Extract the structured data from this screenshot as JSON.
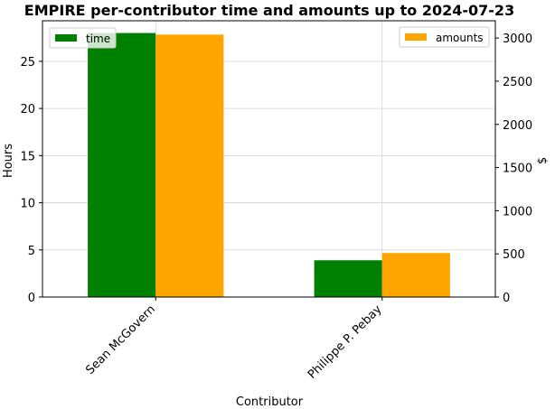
{
  "chart_data": {
    "type": "bar",
    "title": "EMPIRE per-contributor time and amounts up to 2024-07-23",
    "xlabel": "Contributor",
    "categories": [
      "Sean McGovern",
      "Philippe P. Pebay"
    ],
    "left_axis": {
      "label": "Hours",
      "ylim": [
        0,
        29.3
      ],
      "ticks": [
        0,
        5,
        10,
        15,
        20,
        25
      ]
    },
    "right_axis": {
      "label": "$",
      "ylim": [
        0,
        3200
      ],
      "ticks": [
        0,
        500,
        1000,
        1500,
        2000,
        2500,
        3000
      ]
    },
    "series": [
      {
        "name": "time",
        "axis": "left",
        "color": "#008000",
        "values": [
          28.0,
          3.9
        ]
      },
      {
        "name": "amounts",
        "axis": "right",
        "color": "#ffa500",
        "values": [
          3040,
          510
        ]
      }
    ],
    "legends": [
      {
        "series": "time",
        "placement": "upper-left"
      },
      {
        "series": "amounts",
        "placement": "upper-right"
      }
    ],
    "grid": true
  }
}
